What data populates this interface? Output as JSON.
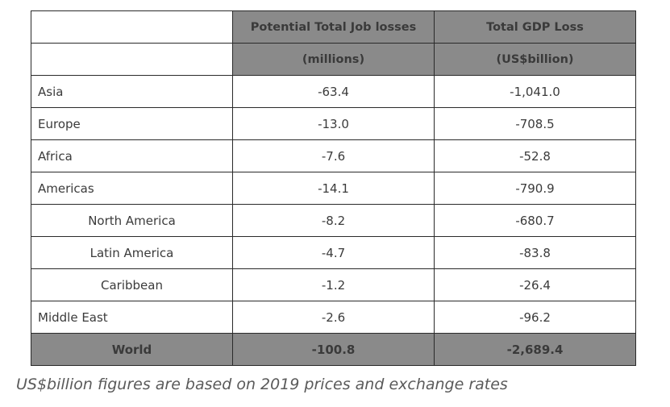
{
  "table": {
    "header_row1": {
      "col1": "Potential Total Job losses",
      "col2": "Total GDP Loss"
    },
    "header_row2": {
      "col1": "(millions)",
      "col2": "(US$billion)"
    },
    "rows": [
      {
        "region": "Asia",
        "jobs": "-63.4",
        "gdp": "-1,041.0"
      },
      {
        "region": "Europe",
        "jobs": "-13.0",
        "gdp": "-708.5"
      },
      {
        "region": "Africa",
        "jobs": "-7.6",
        "gdp": "-52.8"
      },
      {
        "region": "Americas",
        "jobs": "-14.1",
        "gdp": "-790.9"
      },
      {
        "region": "North America",
        "jobs": "-8.2",
        "gdp": "-680.7"
      },
      {
        "region": "Latin America",
        "jobs": "-4.7",
        "gdp": "-83.8"
      },
      {
        "region": "Caribbean",
        "jobs": "-1.2",
        "gdp": "-26.4"
      },
      {
        "region": "Middle East",
        "jobs": "-2.6",
        "gdp": "-96.2"
      }
    ],
    "total": {
      "region": "World",
      "jobs": "-100.8",
      "gdp": "-2,689.4"
    }
  },
  "note": "US$billion figures are based on 2019 prices and exchange rates"
}
